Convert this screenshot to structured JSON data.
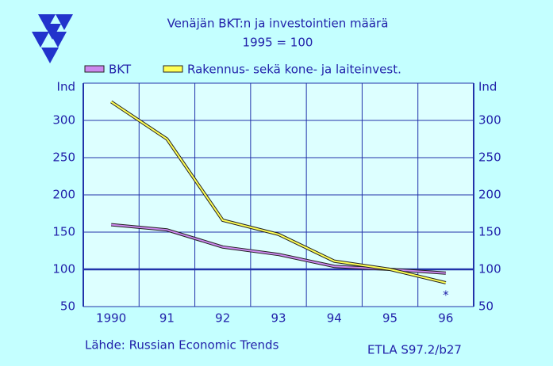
{
  "chart_data": {
    "type": "line",
    "title": "Venäjän BKT:n ja investointien määrä",
    "subtitle": "1995 = 100",
    "y_label": "Ind",
    "categories": [
      "1990",
      "91",
      "92",
      "93",
      "94",
      "95",
      "96"
    ],
    "series": [
      {
        "name": "BKT",
        "color": "#cc88ee",
        "values": [
          160,
          153,
          130,
          120,
          104,
          100,
          95
        ]
      },
      {
        "name": "Rakennus- sekä kone- ja laiteinvest.",
        "color": "#ffff55",
        "values": [
          325,
          275,
          166,
          147,
          111,
          100,
          82
        ]
      }
    ],
    "ylim": [
      50,
      350
    ],
    "yticks": [
      50,
      100,
      150,
      200,
      250,
      300
    ],
    "grid": true,
    "annotation": "*",
    "source": "Lähde: Russian Economic Trends",
    "code": "ETLA S97.2/b27"
  }
}
